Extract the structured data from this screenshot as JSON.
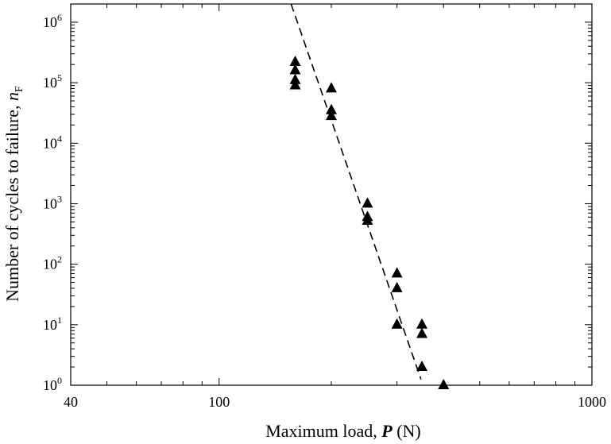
{
  "chart_data": {
    "type": "scatter",
    "title": "",
    "xlabel_main": "Maximum load, ",
    "xlabel_symbol": "P",
    "xlabel_unit": " (N)",
    "ylabel_main": "Number of cycles to failure, ",
    "ylabel_symbol": "n",
    "ylabel_subscript": "F",
    "x_scale": "log",
    "y_scale": "log",
    "xlim": [
      40,
      1000
    ],
    "ylim": [
      1,
      2000000
    ],
    "x_ticks": [
      {
        "value": 40,
        "label": "40"
      },
      {
        "value": 100,
        "label": "100"
      },
      {
        "value": 1000,
        "label": "1000"
      }
    ],
    "y_ticks": [
      {
        "value": 1,
        "base": "10",
        "exp": "0"
      },
      {
        "value": 10,
        "base": "10",
        "exp": "1"
      },
      {
        "value": 100,
        "base": "10",
        "exp": "2"
      },
      {
        "value": 1000,
        "base": "10",
        "exp": "3"
      },
      {
        "value": 10000,
        "base": "10",
        "exp": "4"
      },
      {
        "value": 100000,
        "base": "10",
        "exp": "5"
      },
      {
        "value": 1000000,
        "base": "10",
        "exp": "6"
      }
    ],
    "grid": false,
    "series": [
      {
        "marker": "triangle",
        "color": "#000000",
        "points": [
          {
            "x": 160,
            "y": 220000
          },
          {
            "x": 160,
            "y": 160000
          },
          {
            "x": 160,
            "y": 110000
          },
          {
            "x": 160,
            "y": 90000
          },
          {
            "x": 200,
            "y": 80000
          },
          {
            "x": 200,
            "y": 35000
          },
          {
            "x": 200,
            "y": 28000
          },
          {
            "x": 250,
            "y": 1000
          },
          {
            "x": 250,
            "y": 600
          },
          {
            "x": 250,
            "y": 520
          },
          {
            "x": 300,
            "y": 70
          },
          {
            "x": 300,
            "y": 40
          },
          {
            "x": 300,
            "y": 10
          },
          {
            "x": 350,
            "y": 10
          },
          {
            "x": 350,
            "y": 7
          },
          {
            "x": 350,
            "y": 2
          },
          {
            "x": 400,
            "y": 1
          }
        ]
      }
    ],
    "fit_line": {
      "style": "dashed",
      "color": "#000000",
      "points": [
        {
          "x": 156,
          "y": 2000000
        },
        {
          "x": 348,
          "y": 1.25
        }
      ]
    }
  }
}
